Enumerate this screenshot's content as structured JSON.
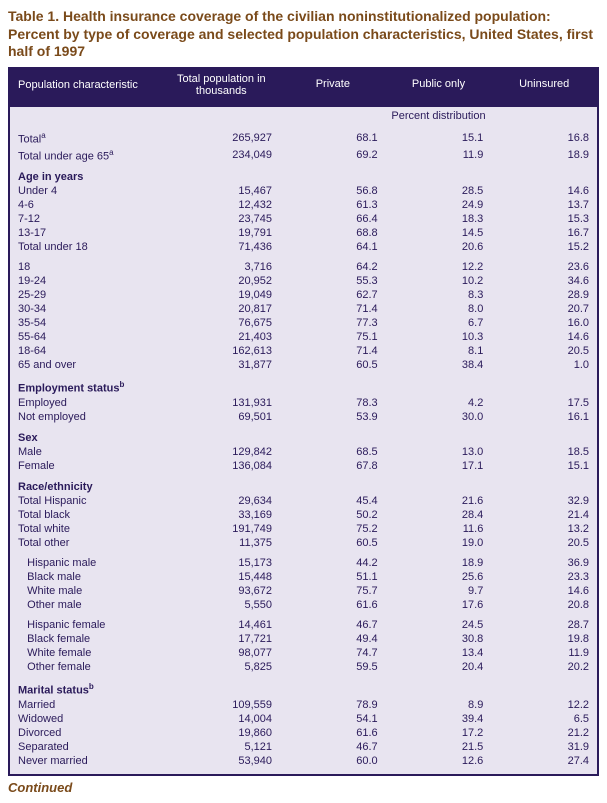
{
  "title": "Table 1.  Health insurance coverage of the civilian noninstitutionalized population: Percent by type of coverage and selected population characteristics, United States, first half of 1997",
  "continued": "Continued",
  "colors": {
    "header_bg": "#2a1a5a",
    "header_fg": "#ffffff",
    "body_bg": "#e8e4f0",
    "body_fg": "#2a1a5a",
    "title_fg": "#7a4a1a",
    "border": "#2a1a5a"
  },
  "columns": [
    {
      "key": "char",
      "label": "Population characteristic",
      "align": "left"
    },
    {
      "key": "pop",
      "label": "Total population in thousands",
      "align": "right"
    },
    {
      "key": "priv",
      "label": "Private",
      "align": "right"
    },
    {
      "key": "pub",
      "label": "Public only",
      "align": "right"
    },
    {
      "key": "unins",
      "label": "Uninsured",
      "align": "right"
    }
  ],
  "subheader": "Percent distribution",
  "rows": [
    {
      "type": "gap"
    },
    {
      "type": "data",
      "label": "Total",
      "sup": "a",
      "pop": "265,927",
      "priv": "68.1",
      "pub": "15.1",
      "unins": "16.8"
    },
    {
      "type": "data",
      "label": "Total under age 65",
      "sup": "a",
      "pop": "234,049",
      "priv": "69.2",
      "pub": "11.9",
      "unins": "18.9"
    },
    {
      "type": "section",
      "label": "Age in years"
    },
    {
      "type": "data",
      "label": "Under 4",
      "pop": "15,467",
      "priv": "56.8",
      "pub": "28.5",
      "unins": "14.6"
    },
    {
      "type": "data",
      "label": "4-6",
      "pop": "12,432",
      "priv": "61.3",
      "pub": "24.9",
      "unins": "13.7"
    },
    {
      "type": "data",
      "label": "7-12",
      "pop": "23,745",
      "priv": "66.4",
      "pub": "18.3",
      "unins": "15.3"
    },
    {
      "type": "data",
      "label": "13-17",
      "pop": "19,791",
      "priv": "68.8",
      "pub": "14.5",
      "unins": "16.7"
    },
    {
      "type": "data",
      "label": "Total under 18",
      "pop": "71,436",
      "priv": "64.1",
      "pub": "20.6",
      "unins": "15.2"
    },
    {
      "type": "gap"
    },
    {
      "type": "data",
      "label": "18",
      "pop": "3,716",
      "priv": "64.2",
      "pub": "12.2",
      "unins": "23.6"
    },
    {
      "type": "data",
      "label": "19-24",
      "pop": "20,952",
      "priv": "55.3",
      "pub": "10.2",
      "unins": "34.6"
    },
    {
      "type": "data",
      "label": "25-29",
      "pop": "19,049",
      "priv": "62.7",
      "pub": "8.3",
      "unins": "28.9"
    },
    {
      "type": "data",
      "label": "30-34",
      "pop": "20,817",
      "priv": "71.4",
      "pub": "8.0",
      "unins": "20.7"
    },
    {
      "type": "data",
      "label": "35-54",
      "pop": "76,675",
      "priv": "77.3",
      "pub": "6.7",
      "unins": "16.0"
    },
    {
      "type": "data",
      "label": "55-64",
      "pop": "21,403",
      "priv": "75.1",
      "pub": "10.3",
      "unins": "14.6"
    },
    {
      "type": "data",
      "label": "18-64",
      "pop": "162,613",
      "priv": "71.4",
      "pub": "8.1",
      "unins": "20.5"
    },
    {
      "type": "data",
      "label": "65 and over",
      "pop": "31,877",
      "priv": "60.5",
      "pub": "38.4",
      "unins": "1.0"
    },
    {
      "type": "section",
      "label": "Employment status",
      "sup": "b"
    },
    {
      "type": "data",
      "label": "Employed",
      "pop": "131,931",
      "priv": "78.3",
      "pub": "4.2",
      "unins": "17.5"
    },
    {
      "type": "data",
      "label": "Not employed",
      "pop": "69,501",
      "priv": "53.9",
      "pub": "30.0",
      "unins": "16.1"
    },
    {
      "type": "section",
      "label": "Sex"
    },
    {
      "type": "data",
      "label": "Male",
      "pop": "129,842",
      "priv": "68.5",
      "pub": "13.0",
      "unins": "18.5"
    },
    {
      "type": "data",
      "label": "Female",
      "pop": "136,084",
      "priv": "67.8",
      "pub": "17.1",
      "unins": "15.1"
    },
    {
      "type": "section",
      "label": "Race/ethnicity"
    },
    {
      "type": "data",
      "label": "Total Hispanic",
      "pop": "29,634",
      "priv": "45.4",
      "pub": "21.6",
      "unins": "32.9"
    },
    {
      "type": "data",
      "label": "Total black",
      "pop": "33,169",
      "priv": "50.2",
      "pub": "28.4",
      "unins": "21.4"
    },
    {
      "type": "data",
      "label": "Total white",
      "pop": "191,749",
      "priv": "75.2",
      "pub": "11.6",
      "unins": "13.2"
    },
    {
      "type": "data",
      "label": "Total other",
      "pop": "11,375",
      "priv": "60.5",
      "pub": "19.0",
      "unins": "20.5"
    },
    {
      "type": "gap"
    },
    {
      "type": "data",
      "indent": 1,
      "label": "Hispanic male",
      "pop": "15,173",
      "priv": "44.2",
      "pub": "18.9",
      "unins": "36.9"
    },
    {
      "type": "data",
      "indent": 1,
      "label": "Black male",
      "pop": "15,448",
      "priv": "51.1",
      "pub": "25.6",
      "unins": "23.3"
    },
    {
      "type": "data",
      "indent": 1,
      "label": "White male",
      "pop": "93,672",
      "priv": "75.7",
      "pub": "9.7",
      "unins": "14.6"
    },
    {
      "type": "data",
      "indent": 1,
      "label": "Other male",
      "pop": "5,550",
      "priv": "61.6",
      "pub": "17.6",
      "unins": "20.8"
    },
    {
      "type": "gap"
    },
    {
      "type": "data",
      "indent": 1,
      "label": "Hispanic female",
      "pop": "14,461",
      "priv": "46.7",
      "pub": "24.5",
      "unins": "28.7"
    },
    {
      "type": "data",
      "indent": 1,
      "label": "Black female",
      "pop": "17,721",
      "priv": "49.4",
      "pub": "30.8",
      "unins": "19.8"
    },
    {
      "type": "data",
      "indent": 1,
      "label": "White female",
      "pop": "98,077",
      "priv": "74.7",
      "pub": "13.4",
      "unins": "11.9"
    },
    {
      "type": "data",
      "indent": 1,
      "label": "Other female",
      "pop": "5,825",
      "priv": "59.5",
      "pub": "20.4",
      "unins": "20.2"
    },
    {
      "type": "section",
      "label": "Marital status",
      "sup": "b"
    },
    {
      "type": "data",
      "label": "Married",
      "pop": "109,559",
      "priv": "78.9",
      "pub": "8.9",
      "unins": "12.2"
    },
    {
      "type": "data",
      "label": "Widowed",
      "pop": "14,004",
      "priv": "54.1",
      "pub": "39.4",
      "unins": "6.5"
    },
    {
      "type": "data",
      "label": "Divorced",
      "pop": "19,860",
      "priv": "61.6",
      "pub": "17.2",
      "unins": "21.2"
    },
    {
      "type": "data",
      "label": "Separated",
      "pop": "5,121",
      "priv": "46.7",
      "pub": "21.5",
      "unins": "31.9"
    },
    {
      "type": "data",
      "label": "Never married",
      "pop": "53,940",
      "priv": "60.0",
      "pub": "12.6",
      "unins": "27.4"
    },
    {
      "type": "gap"
    }
  ]
}
